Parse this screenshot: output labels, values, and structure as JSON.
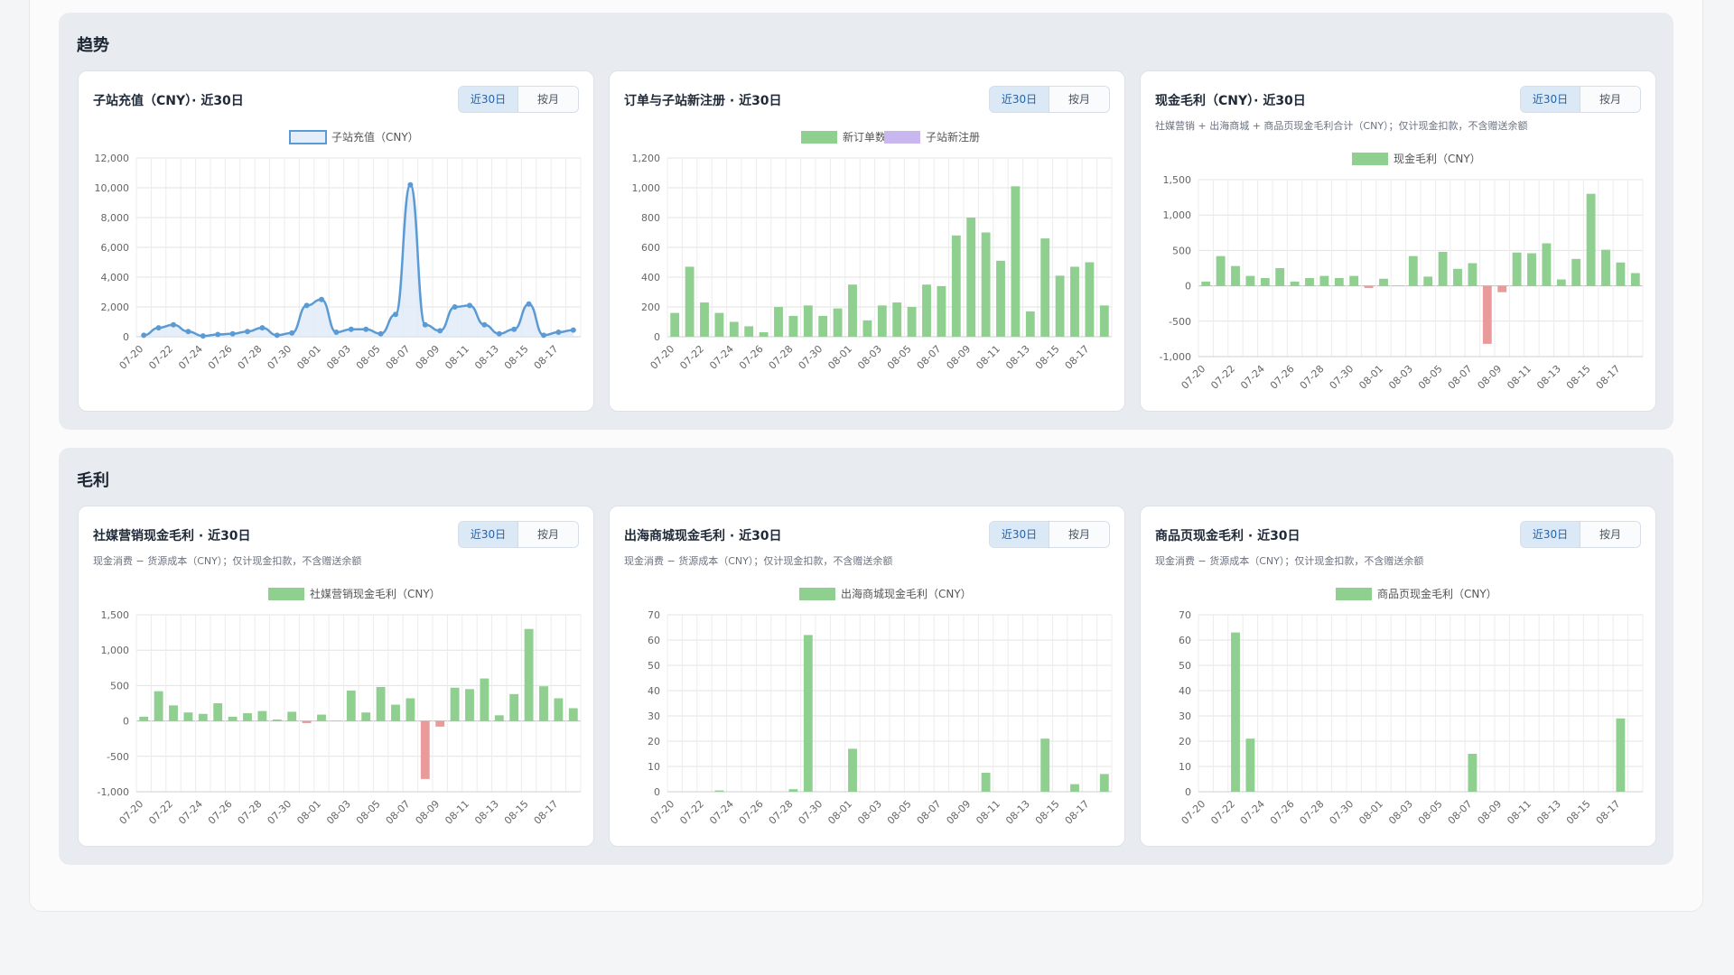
{
  "sections": [
    {
      "title": "趋势",
      "cards": [
        {
          "title": "子站充值（CNY）· 近30日",
          "subtitle": "",
          "buttons": [
            "近30日",
            "按月"
          ],
          "chart_data": {
            "type": "line",
            "categories": [
              "07-20",
              "07-21",
              "07-22",
              "07-23",
              "07-24",
              "07-25",
              "07-26",
              "07-27",
              "07-28",
              "07-29",
              "07-30",
              "07-31",
              "08-01",
              "08-02",
              "08-03",
              "08-04",
              "08-05",
              "08-06",
              "08-07",
              "08-08",
              "08-09",
              "08-10",
              "08-11",
              "08-12",
              "08-13",
              "08-14",
              "08-15",
              "08-16",
              "08-17",
              "08-18"
            ],
            "xticks": [
              "07-20",
              "07-22",
              "07-24",
              "07-26",
              "07-28",
              "07-30",
              "08-01",
              "08-03",
              "08-05",
              "08-07",
              "08-09",
              "08-11",
              "08-13",
              "08-15",
              "08-17"
            ],
            "series": [
              {
                "name": "子站充值（CNY）",
                "values": [
                  100,
                  600,
                  800,
                  350,
                  50,
                  150,
                  200,
                  350,
                  600,
                  100,
                  250,
                  2100,
                  2500,
                  300,
                  500,
                  500,
                  200,
                  1500,
                  10200,
                  800,
                  400,
                  2000,
                  2100,
                  800,
                  200,
                  500,
                  2200,
                  100,
                  300,
                  450
                ],
                "color": "#5b9bd5"
              }
            ],
            "ylim": [
              0,
              12000
            ],
            "yticks": [
              0,
              2000,
              4000,
              6000,
              8000,
              10000,
              12000
            ],
            "ytick_labels": [
              "0",
              "2,000",
              "4,000",
              "6,000",
              "8,000",
              "10,000",
              "12,000"
            ],
            "legend": "top-center",
            "grid": true
          }
        },
        {
          "title": "订单与子站新注册 · 近30日",
          "subtitle": "",
          "buttons": [
            "近30日",
            "按月"
          ],
          "chart_data": {
            "type": "bar",
            "categories": [
              "07-20",
              "07-21",
              "07-22",
              "07-23",
              "07-24",
              "07-25",
              "07-26",
              "07-27",
              "07-28",
              "07-29",
              "07-30",
              "07-31",
              "08-01",
              "08-02",
              "08-03",
              "08-04",
              "08-05",
              "08-06",
              "08-07",
              "08-08",
              "08-09",
              "08-10",
              "08-11",
              "08-12",
              "08-13",
              "08-14",
              "08-15",
              "08-16",
              "08-17",
              "08-18"
            ],
            "xticks": [
              "07-20",
              "07-22",
              "07-24",
              "07-26",
              "07-28",
              "07-30",
              "08-01",
              "08-03",
              "08-05",
              "08-07",
              "08-09",
              "08-11",
              "08-13",
              "08-15",
              "08-17"
            ],
            "series": [
              {
                "name": "新订单数",
                "values": [
                  160,
                  470,
                  230,
                  160,
                  100,
                  70,
                  30,
                  200,
                  140,
                  210,
                  140,
                  190,
                  350,
                  110,
                  210,
                  230,
                  200,
                  350,
                  340,
                  680,
                  800,
                  700,
                  510,
                  1010,
                  170,
                  660,
                  410,
                  470,
                  500,
                  210
                ],
                "color": "#8fcf8f"
              },
              {
                "name": "子站新注册",
                "values": [
                  0,
                  0,
                  0,
                  0,
                  0,
                  0,
                  0,
                  0,
                  0,
                  0,
                  0,
                  0,
                  0,
                  0,
                  0,
                  0,
                  0,
                  0,
                  0,
                  0,
                  0,
                  0,
                  0,
                  0,
                  0,
                  0,
                  0,
                  0,
                  0,
                  0
                ],
                "color": "#c9b8f0"
              }
            ],
            "ylim": [
              0,
              1200
            ],
            "yticks": [
              0,
              200,
              400,
              600,
              800,
              1000,
              1200
            ],
            "ytick_labels": [
              "0",
              "200",
              "400",
              "600",
              "800",
              "1,000",
              "1,200"
            ],
            "legend": "top-center",
            "grid": true
          }
        },
        {
          "title": "现金毛利（CNY）· 近30日",
          "subtitle": "社媒营销 + 出海商城 + 商品页现金毛利合计（CNY）；仅计现金扣款，不含赠送余额",
          "buttons": [
            "近30日",
            "按月"
          ],
          "chart_data": {
            "type": "bar",
            "categories": [
              "07-20",
              "07-21",
              "07-22",
              "07-23",
              "07-24",
              "07-25",
              "07-26",
              "07-27",
              "07-28",
              "07-29",
              "07-30",
              "07-31",
              "08-01",
              "08-02",
              "08-03",
              "08-04",
              "08-05",
              "08-06",
              "08-07",
              "08-08",
              "08-09",
              "08-10",
              "08-11",
              "08-12",
              "08-13",
              "08-14",
              "08-15",
              "08-16",
              "08-17",
              "08-18"
            ],
            "xticks": [
              "07-20",
              "07-22",
              "07-24",
              "07-26",
              "07-28",
              "07-30",
              "08-01",
              "08-03",
              "08-05",
              "08-07",
              "08-09",
              "08-11",
              "08-13",
              "08-15",
              "08-17"
            ],
            "series": [
              {
                "name": "现金毛利（CNY）",
                "values": [
                  60,
                  420,
                  280,
                  140,
                  110,
                  250,
                  60,
                  110,
                  140,
                  110,
                  140,
                  -30,
                  100,
                  0,
                  420,
                  130,
                  480,
                  240,
                  320,
                  -820,
                  -90,
                  470,
                  460,
                  600,
                  90,
                  380,
                  1300,
                  510,
                  330,
                  180
                ],
                "color": "#8fcf8f",
                "negative_color": "#e99b9b"
              }
            ],
            "ylim": [
              -1000,
              1500
            ],
            "yticks": [
              -1000,
              -500,
              0,
              500,
              1000,
              1500
            ],
            "ytick_labels": [
              "-1,000",
              "-500",
              "0",
              "500",
              "1,000",
              "1,500"
            ],
            "legend": "top-center",
            "grid": true
          }
        }
      ]
    },
    {
      "title": "毛利",
      "cards": [
        {
          "title": "社媒营销现金毛利 · 近30日",
          "subtitle": "现金消费 − 货源成本（CNY）；仅计现金扣款，不含赠送余额",
          "buttons": [
            "近30日",
            "按月"
          ],
          "chart_data": {
            "type": "bar",
            "categories": [
              "07-20",
              "07-21",
              "07-22",
              "07-23",
              "07-24",
              "07-25",
              "07-26",
              "07-27",
              "07-28",
              "07-29",
              "07-30",
              "07-31",
              "08-01",
              "08-02",
              "08-03",
              "08-04",
              "08-05",
              "08-06",
              "08-07",
              "08-08",
              "08-09",
              "08-10",
              "08-11",
              "08-12",
              "08-13",
              "08-14",
              "08-15",
              "08-16",
              "08-17",
              "08-18"
            ],
            "xticks": [
              "07-20",
              "07-22",
              "07-24",
              "07-26",
              "07-28",
              "07-30",
              "08-01",
              "08-03",
              "08-05",
              "08-07",
              "08-09",
              "08-11",
              "08-13",
              "08-15",
              "08-17"
            ],
            "series": [
              {
                "name": "社媒营销现金毛利（CNY）",
                "values": [
                  60,
                  420,
                  220,
                  120,
                  100,
                  250,
                  60,
                  110,
                  140,
                  20,
                  130,
                  -30,
                  90,
                  0,
                  430,
                  120,
                  480,
                  230,
                  320,
                  -820,
                  -80,
                  470,
                  450,
                  600,
                  80,
                  380,
                  1300,
                  490,
                  320,
                  180
                ],
                "color": "#8fcf8f",
                "negative_color": "#e99b9b"
              }
            ],
            "ylim": [
              -1000,
              1500
            ],
            "yticks": [
              -1000,
              -500,
              0,
              500,
              1000,
              1500
            ],
            "ytick_labels": [
              "-1,000",
              "-500",
              "0",
              "500",
              "1,000",
              "1,500"
            ],
            "legend": "top-center",
            "grid": true
          }
        },
        {
          "title": "出海商城现金毛利 · 近30日",
          "subtitle": "现金消费 − 货源成本（CNY）；仅计现金扣款，不含赠送余额",
          "buttons": [
            "近30日",
            "按月"
          ],
          "chart_data": {
            "type": "bar",
            "categories": [
              "07-20",
              "07-21",
              "07-22",
              "07-23",
              "07-24",
              "07-25",
              "07-26",
              "07-27",
              "07-28",
              "07-29",
              "07-30",
              "07-31",
              "08-01",
              "08-02",
              "08-03",
              "08-04",
              "08-05",
              "08-06",
              "08-07",
              "08-08",
              "08-09",
              "08-10",
              "08-11",
              "08-12",
              "08-13",
              "08-14",
              "08-15",
              "08-16",
              "08-17",
              "08-18"
            ],
            "xticks": [
              "07-20",
              "07-22",
              "07-24",
              "07-26",
              "07-28",
              "07-30",
              "08-01",
              "08-03",
              "08-05",
              "08-07",
              "08-09",
              "08-11",
              "08-13",
              "08-15",
              "08-17"
            ],
            "series": [
              {
                "name": "出海商城现金毛利（CNY）",
                "values": [
                  0,
                  0,
                  0,
                  0.5,
                  0,
                  0,
                  0,
                  0,
                  1,
                  62,
                  0,
                  0,
                  17,
                  0,
                  0,
                  0,
                  0,
                  0,
                  0,
                  0,
                  0,
                  7.5,
                  0,
                  0,
                  0,
                  21,
                  0,
                  3,
                  0,
                  7
                ],
                "color": "#8fcf8f"
              }
            ],
            "ylim": [
              0,
              70
            ],
            "yticks": [
              0,
              10,
              20,
              30,
              40,
              50,
              60,
              70
            ],
            "ytick_labels": [
              "0",
              "10",
              "20",
              "30",
              "40",
              "50",
              "60",
              "70"
            ],
            "legend": "top-center",
            "grid": true
          }
        },
        {
          "title": "商品页现金毛利 · 近30日",
          "subtitle": "现金消费 − 货源成本（CNY）；仅计现金扣款，不含赠送余额",
          "buttons": [
            "近30日",
            "按月"
          ],
          "chart_data": {
            "type": "bar",
            "categories": [
              "07-20",
              "07-21",
              "07-22",
              "07-23",
              "07-24",
              "07-25",
              "07-26",
              "07-27",
              "07-28",
              "07-29",
              "07-30",
              "07-31",
              "08-01",
              "08-02",
              "08-03",
              "08-04",
              "08-05",
              "08-06",
              "08-07",
              "08-08",
              "08-09",
              "08-10",
              "08-11",
              "08-12",
              "08-13",
              "08-14",
              "08-15",
              "08-16",
              "08-17",
              "08-18"
            ],
            "xticks": [
              "07-20",
              "07-22",
              "07-24",
              "07-26",
              "07-28",
              "07-30",
              "08-01",
              "08-03",
              "08-05",
              "08-07",
              "08-09",
              "08-11",
              "08-13",
              "08-15",
              "08-17"
            ],
            "series": [
              {
                "name": "商品页现金毛利（CNY）",
                "values": [
                  0,
                  0,
                  63,
                  21,
                  0,
                  0,
                  0,
                  0,
                  0,
                  0,
                  0,
                  0,
                  0,
                  0,
                  0,
                  0,
                  0,
                  0,
                  15,
                  0,
                  0,
                  0,
                  0,
                  0,
                  0,
                  0,
                  0,
                  0,
                  29,
                  0
                ],
                "color": "#8fcf8f"
              }
            ],
            "ylim": [
              0,
              70
            ],
            "yticks": [
              0,
              10,
              20,
              30,
              40,
              50,
              60,
              70
            ],
            "ytick_labels": [
              "0",
              "10",
              "20",
              "30",
              "40",
              "50",
              "60",
              "70"
            ],
            "legend": "top-center",
            "grid": true
          }
        }
      ]
    }
  ]
}
